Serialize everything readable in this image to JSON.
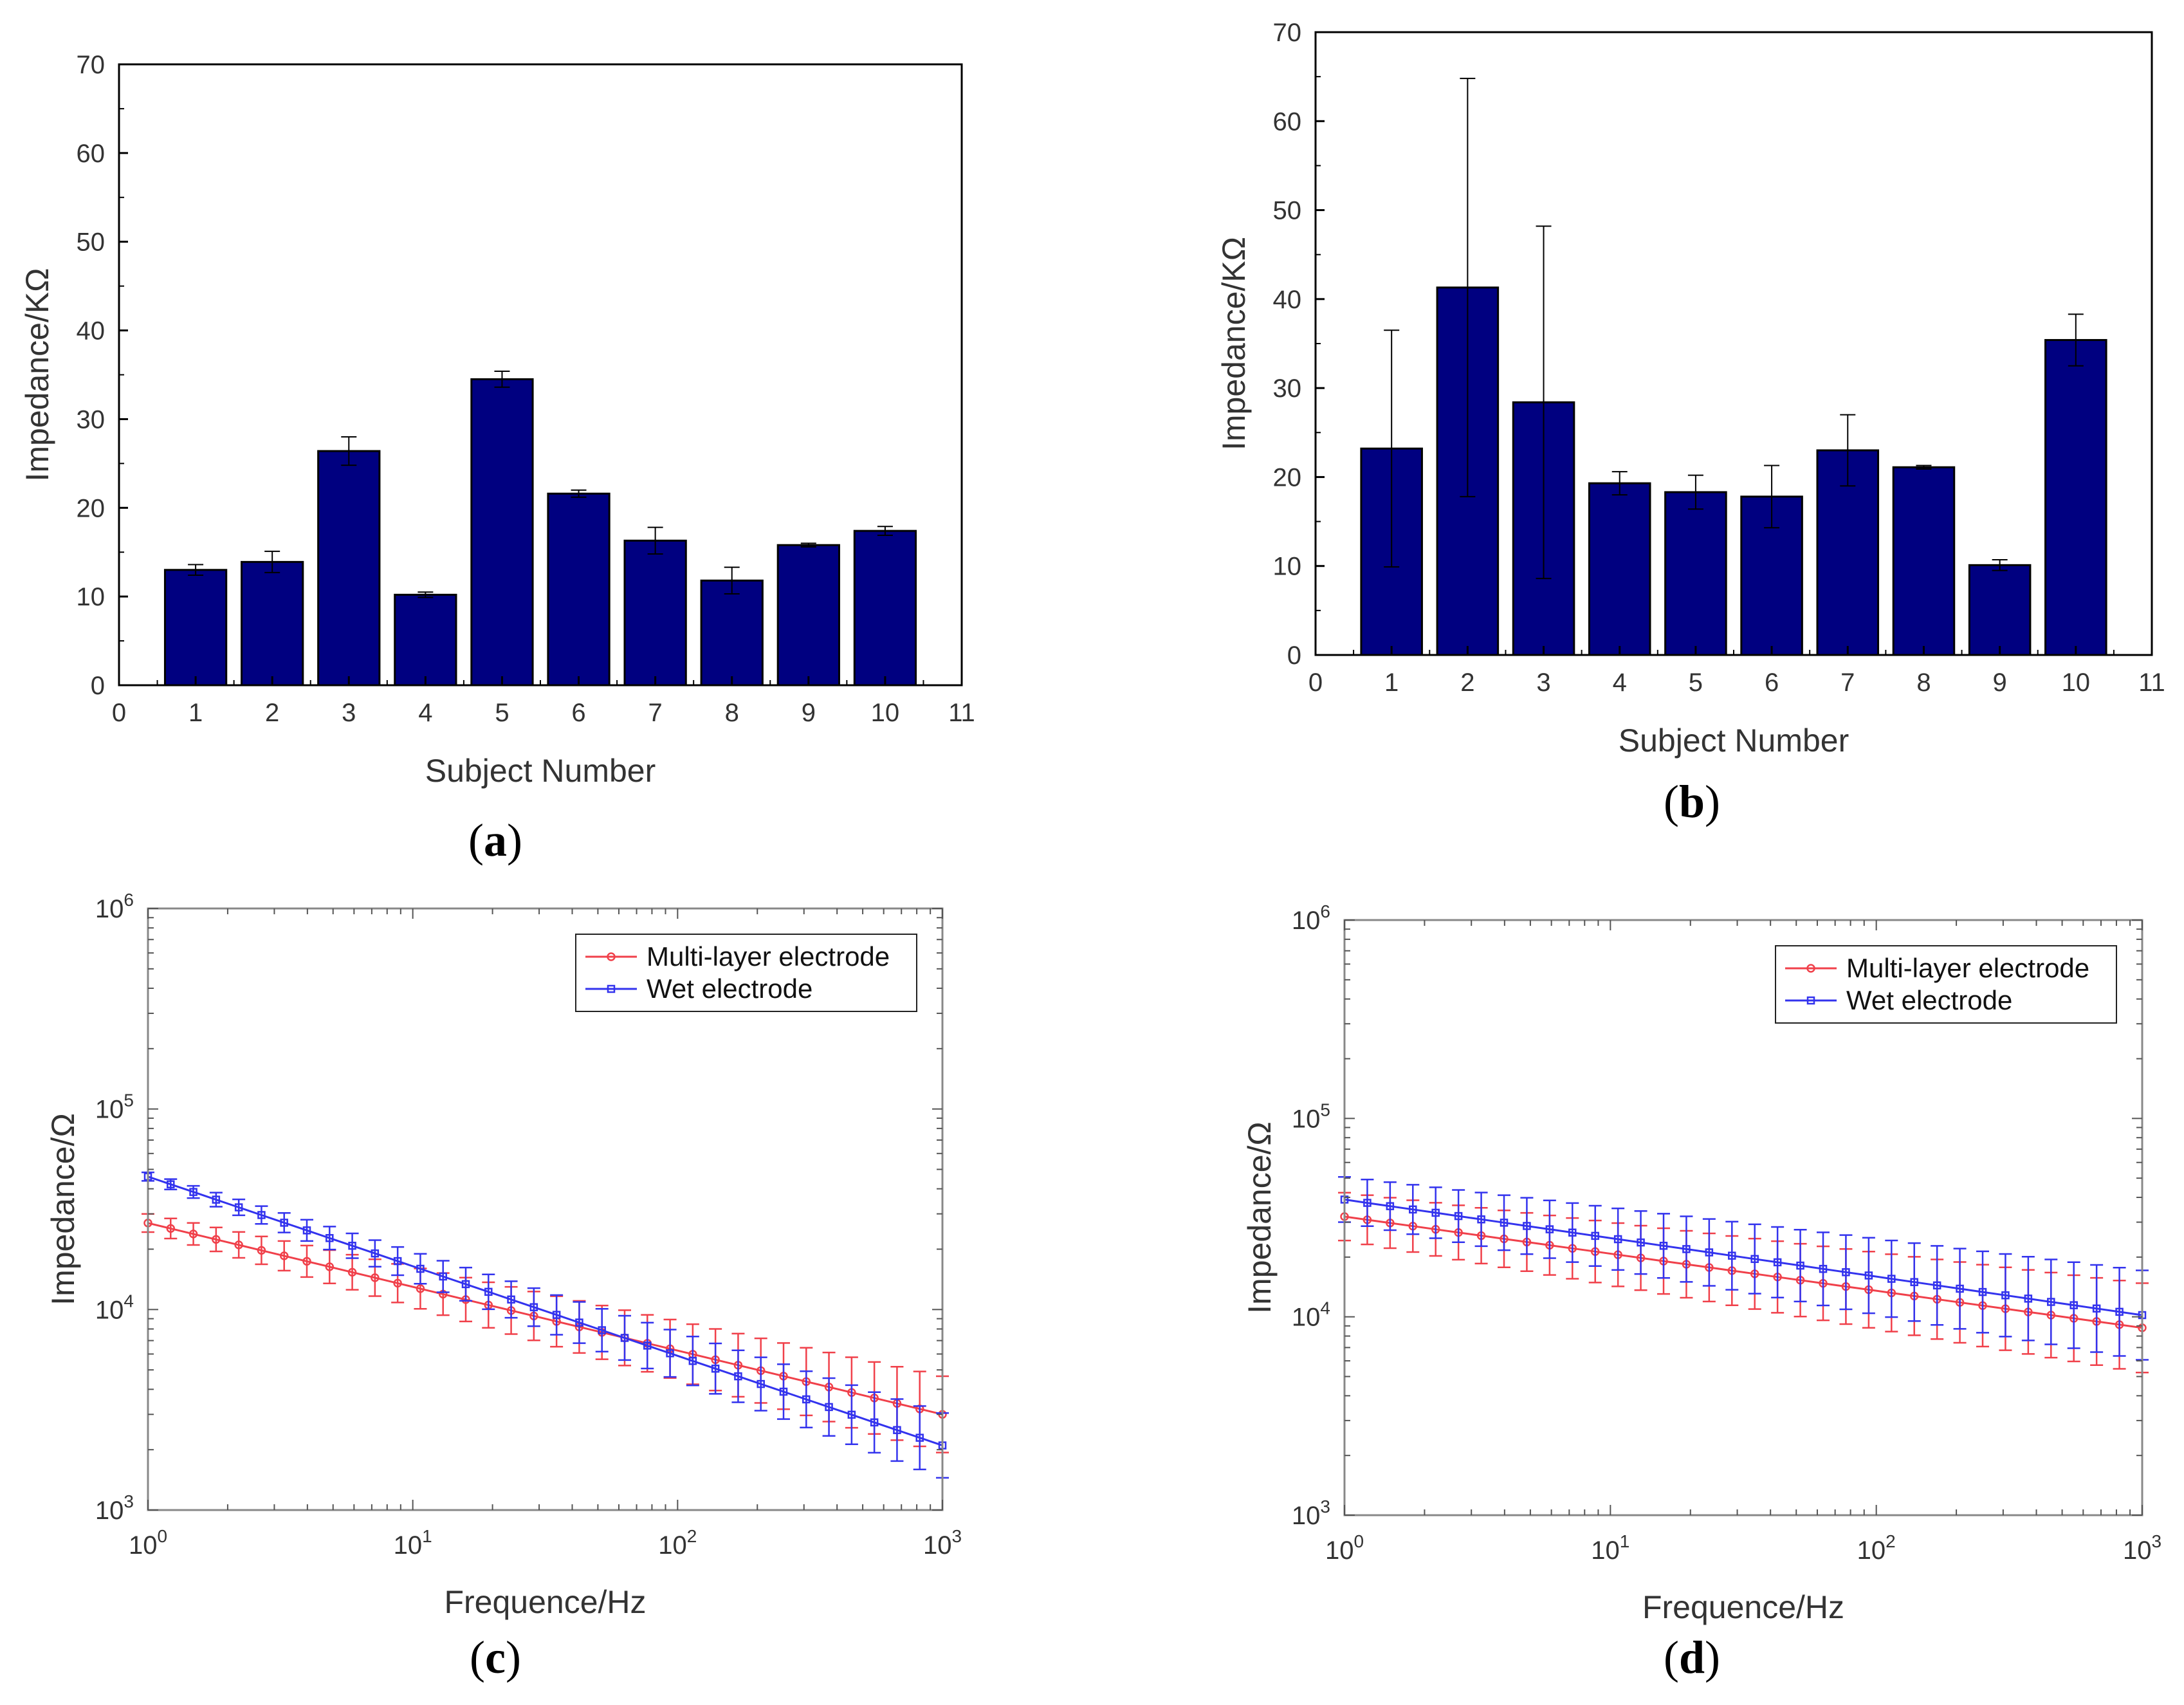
{
  "figure": {
    "panel_labels": [
      "a",
      "b",
      "c",
      "d"
    ],
    "colors": {
      "bar_fill": "#000080",
      "multi_layer": "#f0404a",
      "wet": "#3333ee",
      "axis": "#000000"
    }
  },
  "chart_data": [
    {
      "type": "bar",
      "panel": "a",
      "xlabel": "Subject Number",
      "ylabel": "Impedance/KΩ",
      "xlim": [
        0,
        11
      ],
      "ylim": [
        0,
        70
      ],
      "xticks": [
        0,
        1,
        2,
        3,
        4,
        5,
        6,
        7,
        8,
        9,
        10,
        11
      ],
      "yticks": [
        0,
        10,
        20,
        30,
        40,
        50,
        60,
        70
      ],
      "categories": [
        1,
        2,
        3,
        4,
        5,
        6,
        7,
        8,
        9,
        10
      ],
      "values": [
        13.0,
        13.9,
        26.4,
        10.2,
        34.5,
        21.6,
        16.3,
        11.8,
        15.8,
        17.4
      ],
      "errors": [
        0.6,
        1.2,
        1.6,
        0.3,
        0.9,
        0.4,
        1.5,
        1.5,
        0.2,
        0.5
      ],
      "grid": false
    },
    {
      "type": "bar",
      "panel": "b",
      "xlabel": "Subject Number",
      "ylabel": "Impedance/KΩ",
      "xlim": [
        0,
        11
      ],
      "ylim": [
        0,
        70
      ],
      "xticks": [
        0,
        1,
        2,
        3,
        4,
        5,
        6,
        7,
        8,
        9,
        10,
        11
      ],
      "yticks": [
        0,
        10,
        20,
        30,
        40,
        50,
        60,
        70
      ],
      "categories": [
        1,
        2,
        3,
        4,
        5,
        6,
        7,
        8,
        9,
        10
      ],
      "values": [
        23.2,
        41.3,
        28.4,
        19.3,
        18.3,
        17.8,
        23.0,
        21.1,
        10.1,
        35.4
      ],
      "errors": [
        13.3,
        23.5,
        19.8,
        1.3,
        1.9,
        3.5,
        4.0,
        0.2,
        0.6,
        2.9
      ],
      "grid": false
    },
    {
      "type": "line",
      "panel": "c",
      "xlabel": "Frequence/Hz",
      "ylabel": "Impedance/Ω",
      "xscale": "log",
      "yscale": "log",
      "xlim": [
        1,
        1000
      ],
      "ylim": [
        1000,
        1000000
      ],
      "xticks": [
        {
          "label": "10",
          "exp": "0"
        },
        {
          "label": "10",
          "exp": "1"
        },
        {
          "label": "10",
          "exp": "2"
        },
        {
          "label": "10",
          "exp": "3"
        }
      ],
      "yticks": [
        {
          "label": "10",
          "exp": "3"
        },
        {
          "label": "10",
          "exp": "4"
        },
        {
          "label": "10",
          "exp": "5"
        },
        {
          "label": "10",
          "exp": "6"
        }
      ],
      "legend_position": "top-right",
      "series": [
        {
          "name": "Multi-layer electrode",
          "marker": "circle",
          "start": [
            1,
            27000
          ],
          "end": [
            1000,
            3000
          ],
          "err_rel_start": 0.11,
          "err_rel_end": 0.55
        },
        {
          "name": "Wet electrode",
          "marker": "square",
          "start": [
            1,
            46000
          ],
          "end": [
            1000,
            2100
          ],
          "err_rel_start": 0.05,
          "err_rel_end": 0.45
        }
      ],
      "points": 36,
      "grid": false
    },
    {
      "type": "line",
      "panel": "d",
      "xlabel": "Frequence/Hz",
      "ylabel": "Impedance/Ω",
      "xscale": "log",
      "yscale": "log",
      "xlim": [
        1,
        1000
      ],
      "ylim": [
        1000,
        1000000
      ],
      "xticks": [
        {
          "label": "10",
          "exp": "0"
        },
        {
          "label": "10",
          "exp": "1"
        },
        {
          "label": "10",
          "exp": "2"
        },
        {
          "label": "10",
          "exp": "3"
        }
      ],
      "yticks": [
        {
          "label": "10",
          "exp": "3"
        },
        {
          "label": "10",
          "exp": "4"
        },
        {
          "label": "10",
          "exp": "5"
        },
        {
          "label": "10",
          "exp": "6"
        }
      ],
      "legend_position": "top-right",
      "series": [
        {
          "name": "Multi-layer electrode",
          "marker": "circle",
          "start": [
            1,
            32000
          ],
          "end": [
            1000,
            8800
          ],
          "err_rel_start": 0.32,
          "err_rel_end": 0.68
        },
        {
          "name": "Wet electrode",
          "marker": "square",
          "start": [
            1,
            39000
          ],
          "end": [
            1000,
            10200
          ],
          "err_rel_start": 0.3,
          "err_rel_end": 0.68
        }
      ],
      "points": 36,
      "grid": false
    }
  ]
}
